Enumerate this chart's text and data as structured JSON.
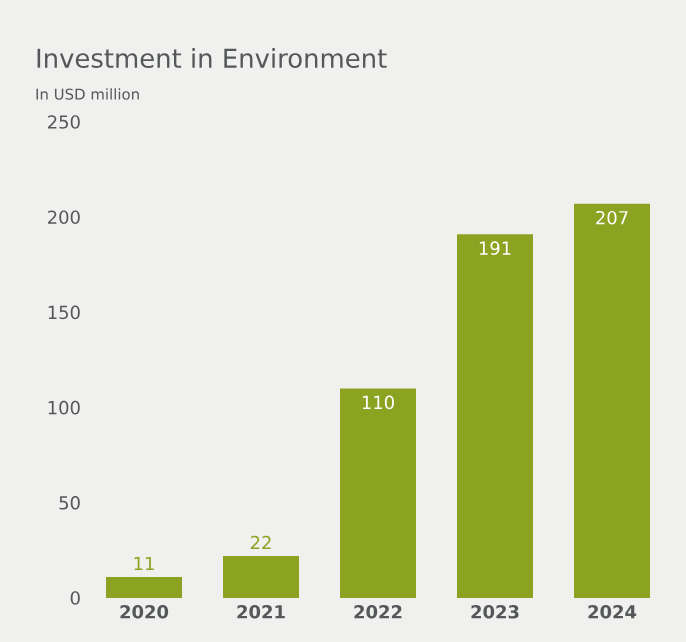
{
  "chart_data": {
    "type": "bar",
    "title": "Investment in Environment",
    "subtitle": "In USD million",
    "categories": [
      "2020",
      "2021",
      "2022",
      "2023",
      "2024"
    ],
    "values": [
      11,
      22,
      110,
      191,
      207
    ],
    "color": "#8ca321",
    "ylim": [
      0,
      250
    ],
    "yticks": [
      0,
      50,
      100,
      150,
      200,
      250
    ],
    "grid": false,
    "data_labels": true
  }
}
